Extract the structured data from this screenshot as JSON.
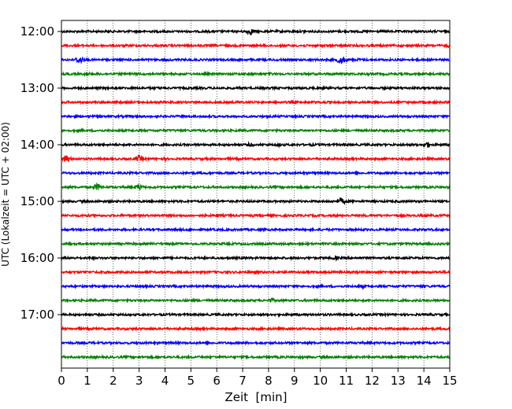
{
  "chart_data": {
    "type": "line",
    "xlabel": "Zeit  [min]",
    "ylabel": "UTC (Lokalzeit = UTC + 02:00)",
    "xlim": [
      0,
      15
    ],
    "x_ticks": [
      0,
      1,
      2,
      3,
      4,
      5,
      6,
      7,
      8,
      9,
      10,
      11,
      12,
      13,
      14,
      15
    ],
    "y_ticks": [
      "12:00",
      "13:00",
      "14:00",
      "15:00",
      "16:00",
      "17:00"
    ],
    "grid": "vertical dotted",
    "series_colors": [
      "#000000",
      "#ff0000",
      "#0000ff",
      "#008000"
    ],
    "traces": [
      {
        "start": "12:00",
        "color": "#000000",
        "events": [
          [
            7.3,
            3.5
          ],
          [
            9.4,
            1.6
          ],
          [
            11.6,
            1.4
          ]
        ]
      },
      {
        "start": "12:15",
        "color": "#ff0000",
        "events": [
          [
            10.8,
            1.2
          ],
          [
            14.9,
            2.0
          ]
        ]
      },
      {
        "start": "12:30",
        "color": "#0000ff",
        "events": [
          [
            0.7,
            4.0
          ],
          [
            10.8,
            4.5
          ],
          [
            11.5,
            1.6
          ]
        ]
      },
      {
        "start": "12:45",
        "color": "#008000",
        "events": [
          [
            1.0,
            2.0
          ],
          [
            8.1,
            1.5
          ],
          [
            11.9,
            1.4
          ]
        ]
      },
      {
        "start": "13:00",
        "color": "#000000",
        "events": [
          [
            2.2,
            1.0
          ],
          [
            9.2,
            1.0
          ]
        ]
      },
      {
        "start": "13:15",
        "color": "#ff0000",
        "events": [
          [
            5.5,
            1.0
          ]
        ]
      },
      {
        "start": "13:30",
        "color": "#0000ff",
        "events": [
          [
            4.7,
            1.1
          ],
          [
            11.0,
            1.0
          ]
        ]
      },
      {
        "start": "13:45",
        "color": "#008000",
        "events": [
          [
            3.2,
            1.0
          ],
          [
            12.5,
            1.0
          ]
        ]
      },
      {
        "start": "14:00",
        "color": "#000000",
        "events": [
          [
            7.3,
            2.2
          ],
          [
            8.4,
            2.0
          ],
          [
            9.7,
            1.5
          ],
          [
            13.3,
            1.6
          ],
          [
            14.1,
            3.5
          ]
        ]
      },
      {
        "start": "14:15",
        "color": "#ff0000",
        "events": [
          [
            0.2,
            3.8
          ],
          [
            3.0,
            3.6
          ],
          [
            4.0,
            1.6
          ]
        ]
      },
      {
        "start": "14:30",
        "color": "#0000ff",
        "events": [
          [
            6.8,
            1.0
          ]
        ]
      },
      {
        "start": "14:45",
        "color": "#008000",
        "events": [
          [
            1.4,
            3.5
          ],
          [
            3.0,
            3.4
          ],
          [
            12.3,
            1.5
          ]
        ]
      },
      {
        "start": "15:00",
        "color": "#000000",
        "events": [
          [
            10.8,
            3.6
          ]
        ]
      },
      {
        "start": "15:15",
        "color": "#ff0000",
        "events": [
          [
            1.3,
            1.4
          ],
          [
            8.2,
            1.2
          ]
        ]
      },
      {
        "start": "15:30",
        "color": "#0000ff",
        "events": [
          [
            4.9,
            1.4
          ],
          [
            10.5,
            1.1
          ]
        ]
      },
      {
        "start": "15:45",
        "color": "#008000",
        "events": [
          [
            0.9,
            1.2
          ],
          [
            7.9,
            1.0
          ]
        ]
      },
      {
        "start": "16:00",
        "color": "#000000",
        "events": [
          [
            1.2,
            1.8
          ],
          [
            3.6,
            1.6
          ],
          [
            10.6,
            2.2
          ]
        ]
      },
      {
        "start": "16:15",
        "color": "#ff0000",
        "events": [
          [
            11.6,
            1.0
          ]
        ]
      },
      {
        "start": "16:30",
        "color": "#0000ff",
        "events": [
          [
            11.6,
            2.0
          ],
          [
            14.0,
            1.6
          ]
        ]
      },
      {
        "start": "16:45",
        "color": "#008000",
        "events": [
          [
            6.3,
            1.2
          ],
          [
            8.1,
            2.4
          ]
        ]
      },
      {
        "start": "17:00",
        "color": "#000000",
        "events": [
          [
            3.5,
            1.0
          ],
          [
            12.6,
            1.0
          ]
        ]
      },
      {
        "start": "17:15",
        "color": "#ff0000",
        "events": [
          [
            4.6,
            1.0
          ]
        ]
      },
      {
        "start": "17:30",
        "color": "#0000ff",
        "events": []
      },
      {
        "start": "17:45",
        "color": "#008000",
        "events": [
          [
            8.5,
            1.0
          ]
        ]
      }
    ]
  }
}
